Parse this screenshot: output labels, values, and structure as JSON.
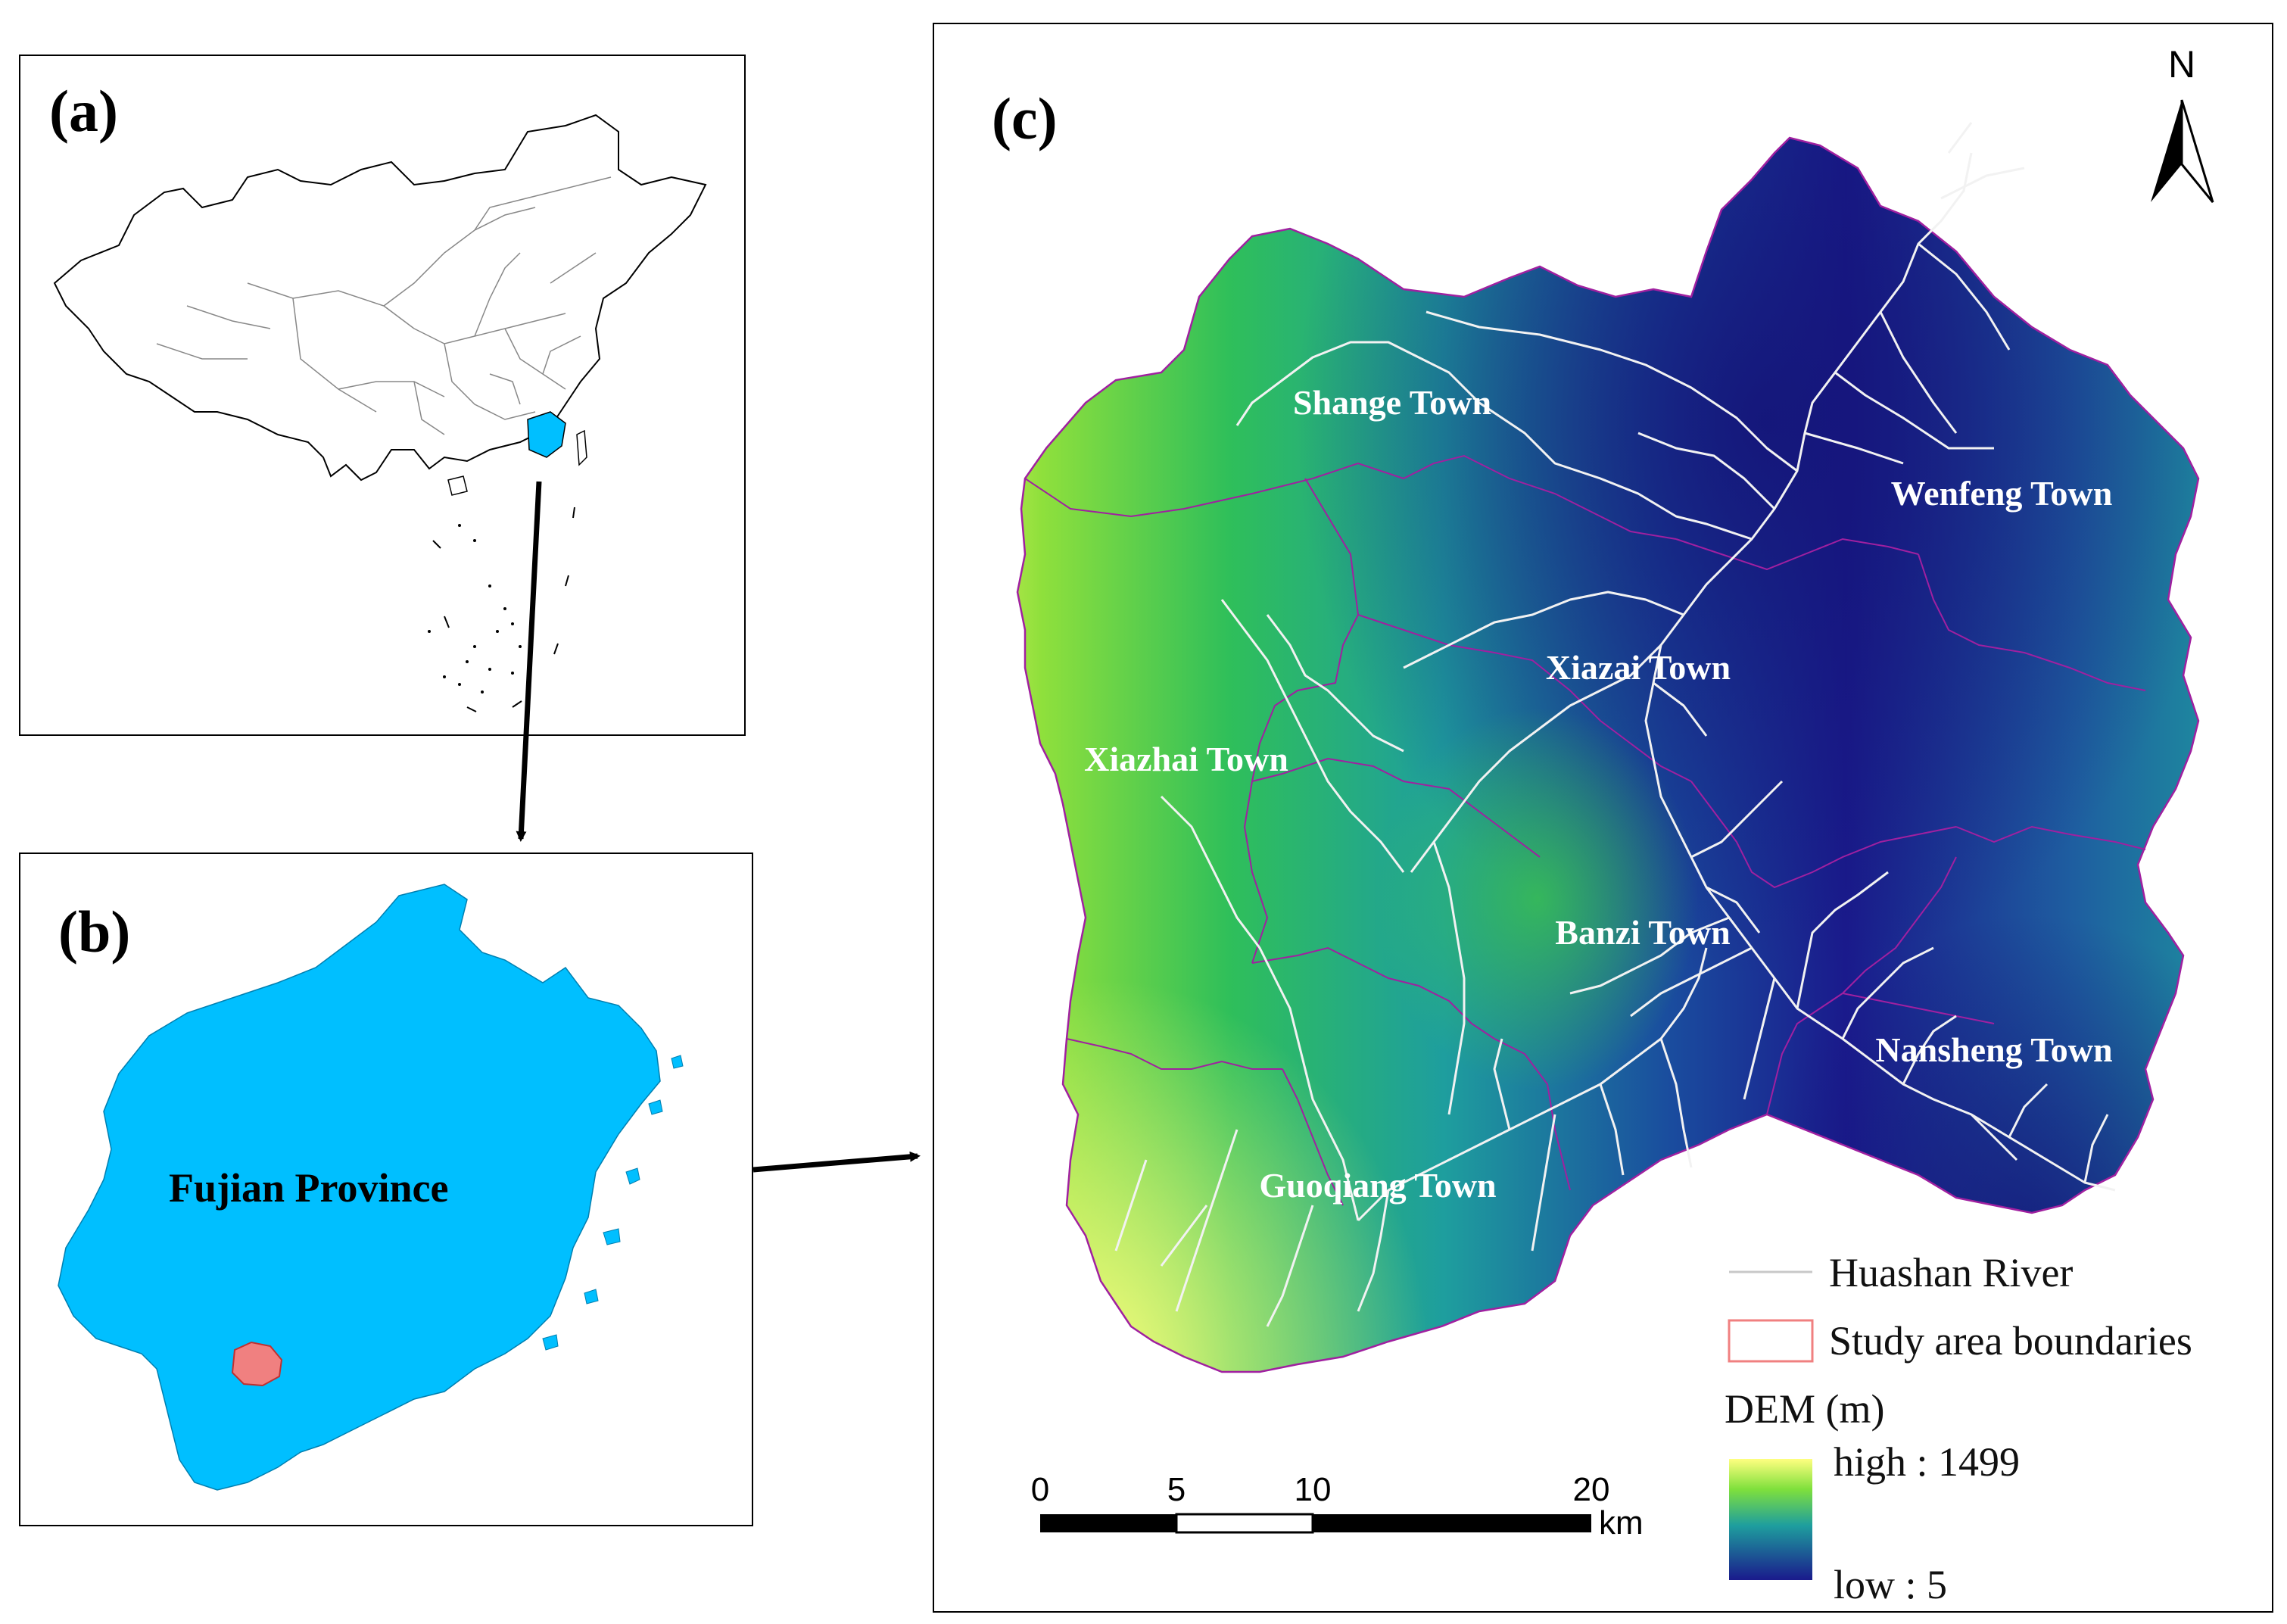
{
  "panels": {
    "a": {
      "label": "(a)"
    },
    "b": {
      "label": "(b)",
      "province_name": "Fujian Province"
    },
    "c": {
      "label": "(c)"
    }
  },
  "towns": [
    {
      "id": "shange",
      "name": "Shange Town"
    },
    {
      "id": "wenfeng",
      "name": "Wenfeng Town"
    },
    {
      "id": "xiazai",
      "name": "Xiazai Town"
    },
    {
      "id": "xiazhai",
      "name": "Xiazhai Town"
    },
    {
      "id": "banzi",
      "name": "Banzi Town"
    },
    {
      "id": "nansheng",
      "name": "Nansheng Town"
    },
    {
      "id": "guoqiang",
      "name": "Guoqiang Town"
    }
  ],
  "north_arrow": {
    "label": "N"
  },
  "legend": {
    "river_label": "Huashan River",
    "boundary_label": "Study area boundaries",
    "dem_title": "DEM  (m)",
    "dem_high": "high : 1499",
    "dem_low": "low : 5"
  },
  "scale_bar": {
    "ticks": [
      "0",
      "5",
      "10",
      "20"
    ],
    "unit": "km"
  },
  "colors": {
    "province_fill": "#00BFFF",
    "study_area_fill": "#F08080",
    "dem_low": "#1A1A8C",
    "dem_mid": "#1E9E9E",
    "dem_green": "#3CC83C",
    "dem_high": "#FFFF80",
    "boundary_line": "#A020A0",
    "river_line": "#F0F0F0"
  }
}
